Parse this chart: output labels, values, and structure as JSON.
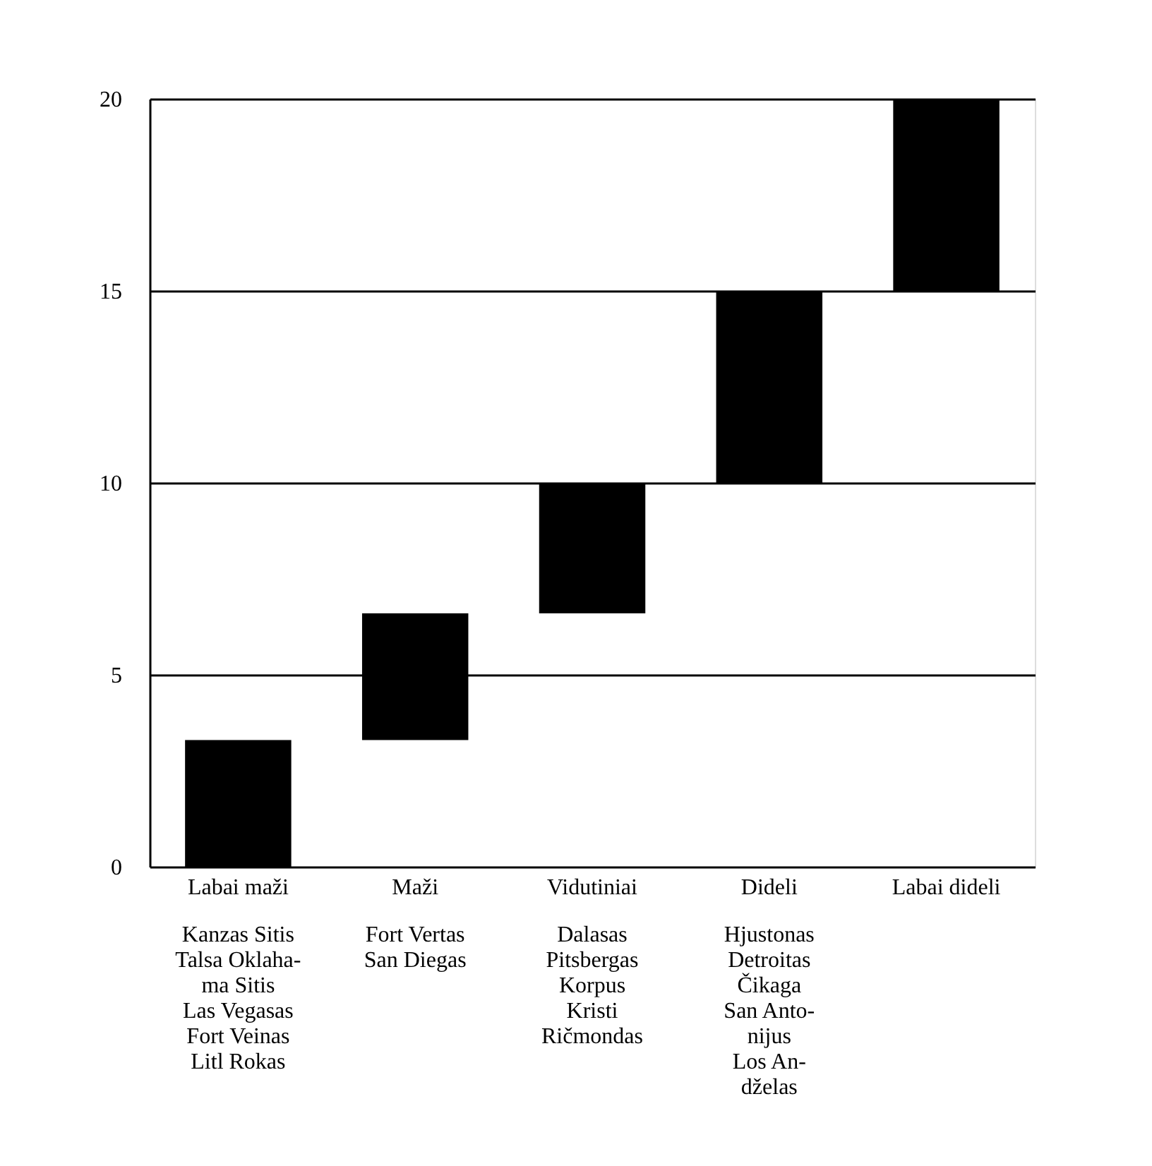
{
  "chart_data": {
    "type": "bar",
    "categories": [
      "Labai maži",
      "Maži",
      "Vidutiniai",
      "Dideli",
      "Labai dideli"
    ],
    "base": [
      0,
      3.3,
      6.6,
      10,
      15
    ],
    "values": [
      3.3,
      3.3,
      3.4,
      5,
      5
    ],
    "color": "#000000",
    "ylim": [
      0,
      20
    ],
    "yticks": [
      0,
      5,
      10,
      15,
      20
    ],
    "grid": "y",
    "annotations": [
      "Kanzas Sitis\nTalsa Oklaha-\nma Sitis\nLas Vegasas\nFort Veinas\nLitl Rokas",
      "Fort Vertas\nSan Diegas",
      "Dalasas\nPitsbergas\nKorpus\nKristi\nRičmondas",
      "Hjustonas\nDetroitas\nČikaga\nSan Anto-\nnijus\nLos An-\ndželas"
    ]
  }
}
